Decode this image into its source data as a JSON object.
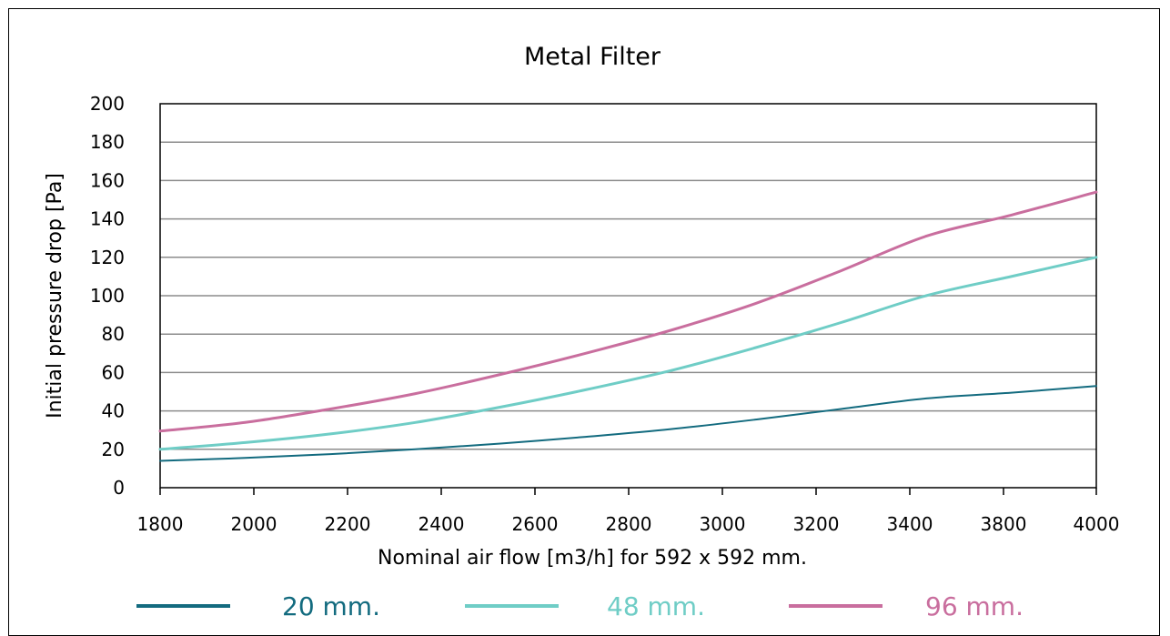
{
  "chart_data": {
    "type": "line",
    "title": "Metal Filter",
    "xlabel": "Nominal air flow [m3/h] for 592 x 592 mm.",
    "ylabel": "Initial pressure drop [Pa]",
    "x_ticks": [
      1800,
      2000,
      2200,
      2400,
      2600,
      2800,
      3000,
      3200,
      3400,
      3800,
      4000
    ],
    "y_ticks": [
      0,
      20,
      40,
      60,
      80,
      100,
      120,
      140,
      160,
      180,
      200
    ],
    "xlim": [
      1800,
      4000
    ],
    "ylim": [
      0,
      200
    ],
    "grid": true,
    "legend_placement": "bottom",
    "x": [
      1800,
      2000,
      2200,
      2400,
      2600,
      2800,
      3000,
      3200,
      3400,
      3600,
      3800,
      4000
    ],
    "series": [
      {
        "name": "20 mm.",
        "color": "#136b7f",
        "values": [
          14,
          15.5,
          17.5,
          20,
          23,
          26.5,
          30.5,
          35.5,
          41,
          46.5,
          49.5,
          53
        ]
      },
      {
        "name": "48 mm.",
        "color": "#6fcdc6",
        "values": [
          20,
          23.5,
          28,
          34,
          42,
          51,
          61,
          73,
          86,
          100,
          110,
          120
        ]
      },
      {
        "name": "96 mm.",
        "color": "#c96e9e",
        "values": [
          29.5,
          34,
          41,
          49,
          59,
          70,
          82,
          96,
          113,
          131,
          142,
          154
        ]
      }
    ]
  }
}
